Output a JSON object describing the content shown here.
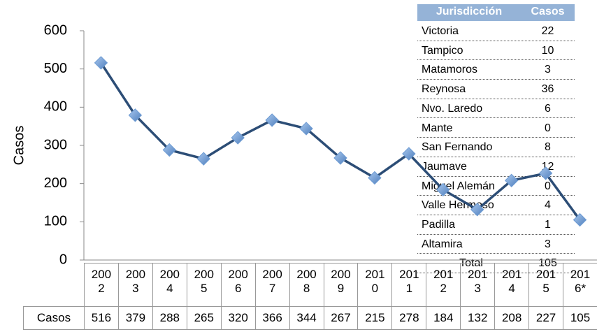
{
  "chart_data": {
    "type": "line",
    "ylabel": "Casos",
    "categories": [
      "2002",
      "2003",
      "2004",
      "2005",
      "2006",
      "2007",
      "2008",
      "2009",
      "2010",
      "2011",
      "2012",
      "2013",
      "2014",
      "2015",
      "2016*"
    ],
    "series": [
      {
        "name": "Casos",
        "color": "#2c4d76",
        "marker_color": "#6d9bd3",
        "values": [
          516,
          379,
          288,
          265,
          320,
          366,
          344,
          267,
          215,
          278,
          184,
          132,
          208,
          227,
          105
        ]
      }
    ],
    "ylim": [
      0,
      600
    ],
    "yticks": [
      0,
      100,
      200,
      300,
      400,
      500,
      600
    ],
    "grid": false
  },
  "table": {
    "header": [
      "Jurisdicción",
      "Casos"
    ],
    "rows": [
      [
        "Victoria",
        "22"
      ],
      [
        "Tampico",
        "10"
      ],
      [
        "Matamoros",
        "3"
      ],
      [
        "Reynosa",
        "36"
      ],
      [
        "Nvo. Laredo",
        "6"
      ],
      [
        "Mante",
        "0"
      ],
      [
        "San Fernando",
        "8"
      ],
      [
        "Jaumave",
        "12"
      ],
      [
        "Miguel Alemán",
        "0"
      ],
      [
        "Valle Hermoso",
        "4"
      ],
      [
        "Padilla",
        "1"
      ],
      [
        "Altamira",
        "3"
      ],
      [
        "Total",
        "105"
      ]
    ]
  }
}
